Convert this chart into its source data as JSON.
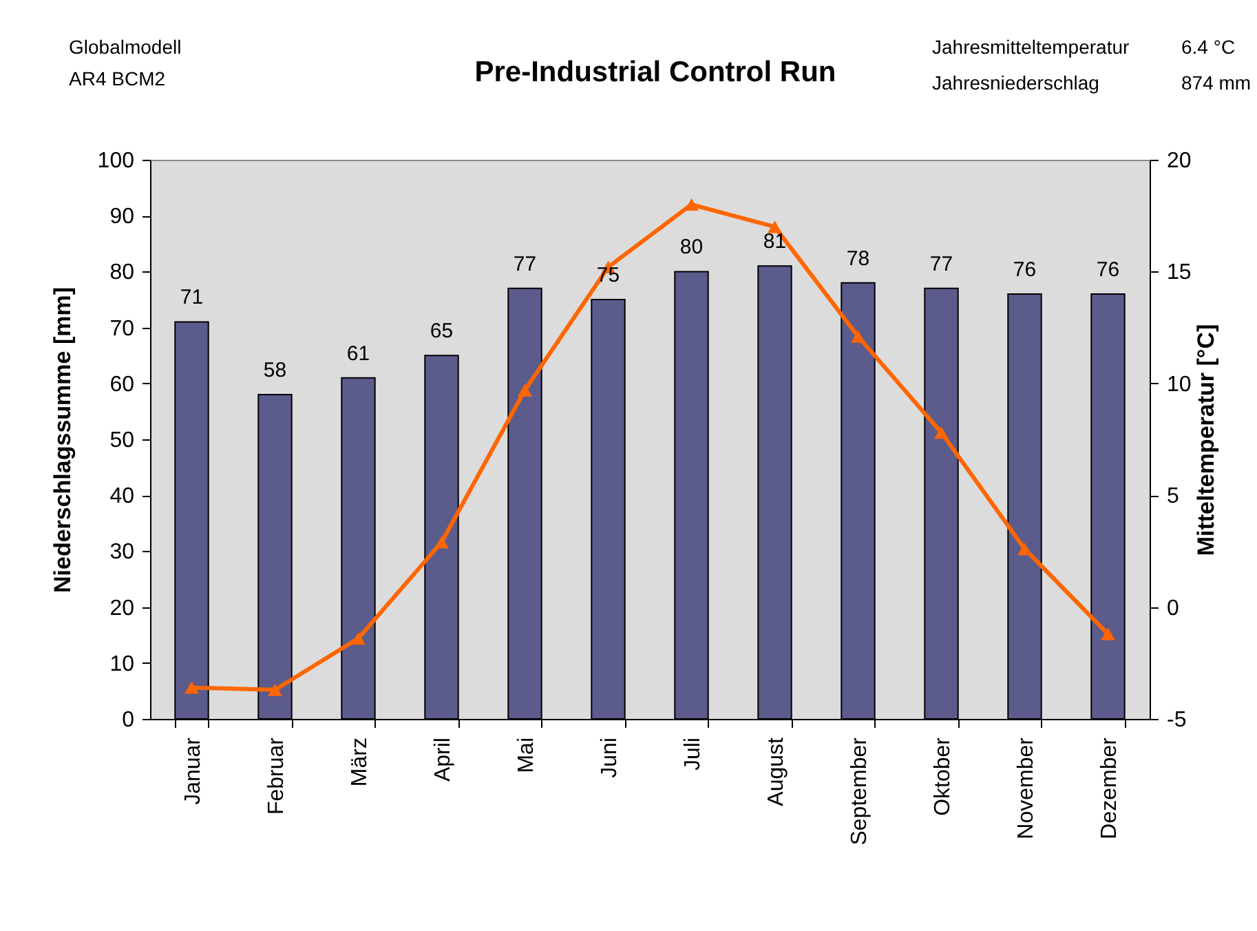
{
  "chart_data": {
    "type": "bar",
    "title": "Pre-Industrial Control Run",
    "annotations": [
      "Globalmodell",
      "AR4 BCM2",
      "Jahresmitteltemperatur",
      "6.4 °C",
      "Jahresniederschlag",
      "874 mm"
    ],
    "categories": [
      "Januar",
      "Februar",
      "März",
      "April",
      "Mai",
      "Juni",
      "Juli",
      "August",
      "September",
      "Oktober",
      "November",
      "Dezember"
    ],
    "ylabel": "Niederschlagssumme [mm]",
    "y2label": "Mitteltemperatur [°C]",
    "ylim": [
      0,
      100
    ],
    "yticks": [
      0,
      10,
      20,
      30,
      40,
      50,
      60,
      70,
      80,
      90,
      100
    ],
    "y2lim": [
      -5,
      20
    ],
    "y2ticks": [
      -5,
      0,
      5,
      10,
      15,
      20
    ],
    "series": [
      {
        "color": "#5b5b8c",
        "values": [
          71,
          58,
          61,
          65,
          77,
          75,
          80,
          81,
          78,
          77,
          76,
          76
        ],
        "value_labels": [
          "71",
          "58",
          "61",
          "65",
          "77",
          "75",
          "80",
          "81",
          "78",
          "77",
          "76",
          "76"
        ]
      },
      {
        "type": "line",
        "axis": "y2",
        "color": "#ff6600",
        "marker": "triangle",
        "values": [
          -3.6,
          -3.7,
          -1.4,
          2.9,
          9.7,
          15.2,
          18.0,
          17.0,
          12.1,
          7.8,
          2.6,
          -1.2
        ]
      }
    ]
  }
}
